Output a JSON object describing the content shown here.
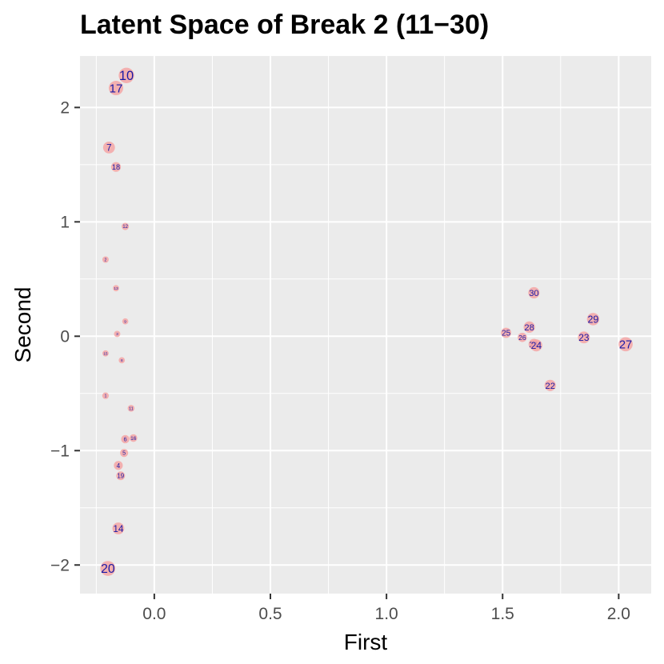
{
  "chart_data": {
    "type": "scatter",
    "title": "Latent Space of Break 2 (11−30)",
    "xlabel": "First",
    "ylabel": "Second",
    "xlim": [
      -0.32,
      2.14
    ],
    "ylim": [
      -2.25,
      2.45
    ],
    "x_ticks": [
      {
        "value": 0.0,
        "label": "0.0"
      },
      {
        "value": 0.5,
        "label": "0.5"
      },
      {
        "value": 1.0,
        "label": "1.0"
      },
      {
        "value": 1.5,
        "label": "1.5"
      },
      {
        "value": 2.0,
        "label": "2.0"
      }
    ],
    "y_ticks": [
      {
        "value": -2,
        "label": "−2"
      },
      {
        "value": -1,
        "label": "−1"
      },
      {
        "value": 0,
        "label": "0"
      },
      {
        "value": 1,
        "label": "1"
      },
      {
        "value": 2,
        "label": "2"
      }
    ],
    "grid": true,
    "marker_color": "#f4a6a6",
    "label_color": "#1a1aa6",
    "panel_color": "#ebebeb",
    "points": [
      {
        "label": "1",
        "x": -0.21,
        "y": -0.52,
        "size": 0.1
      },
      {
        "label": "2",
        "x": -0.21,
        "y": 0.67,
        "size": 0.08
      },
      {
        "label": "3",
        "x": -0.16,
        "y": 0.02,
        "size": 0.07
      },
      {
        "label": "4",
        "x": -0.155,
        "y": -1.13,
        "size": 0.32
      },
      {
        "label": "5",
        "x": -0.13,
        "y": -1.02,
        "size": 0.24
      },
      {
        "label": "6",
        "x": -0.125,
        "y": -0.9,
        "size": 0.26
      },
      {
        "label": "7",
        "x": -0.195,
        "y": 1.65,
        "size": 0.6
      },
      {
        "label": "8",
        "x": -0.14,
        "y": -0.21,
        "size": 0.05
      },
      {
        "label": "9",
        "x": -0.125,
        "y": 0.13,
        "size": 0.05
      },
      {
        "label": "10",
        "x": -0.12,
        "y": 2.28,
        "size": 0.95
      },
      {
        "label": "11",
        "x": -0.1,
        "y": -0.63,
        "size": 0.12
      },
      {
        "label": "12",
        "x": -0.125,
        "y": 0.96,
        "size": 0.16
      },
      {
        "label": "13",
        "x": -0.165,
        "y": 0.42,
        "size": 0.06
      },
      {
        "label": "14",
        "x": -0.155,
        "y": -1.68,
        "size": 0.6
      },
      {
        "label": "15",
        "x": -0.21,
        "y": -0.15,
        "size": 0.06
      },
      {
        "label": "16",
        "x": -0.09,
        "y": -0.89,
        "size": 0.2
      },
      {
        "label": "17",
        "x": -0.165,
        "y": 2.17,
        "size": 0.85
      },
      {
        "label": "18",
        "x": -0.165,
        "y": 1.48,
        "size": 0.4
      },
      {
        "label": "19",
        "x": -0.145,
        "y": -1.22,
        "size": 0.3
      },
      {
        "label": "20",
        "x": -0.2,
        "y": -2.03,
        "size": 0.9
      },
      {
        "label": "21",
        "x": 1.635,
        "y": -0.07,
        "size": 0.5
      },
      {
        "label": "22",
        "x": 1.705,
        "y": -0.43,
        "size": 0.55
      },
      {
        "label": "23",
        "x": 1.85,
        "y": -0.01,
        "size": 0.6
      },
      {
        "label": "24",
        "x": 1.645,
        "y": -0.08,
        "size": 0.62
      },
      {
        "label": "25",
        "x": 1.515,
        "y": 0.03,
        "size": 0.45
      },
      {
        "label": "26",
        "x": 1.585,
        "y": -0.01,
        "size": 0.35
      },
      {
        "label": "27",
        "x": 2.03,
        "y": -0.07,
        "size": 0.82
      },
      {
        "label": "28",
        "x": 1.615,
        "y": 0.08,
        "size": 0.55
      },
      {
        "label": "29",
        "x": 1.89,
        "y": 0.15,
        "size": 0.65
      },
      {
        "label": "30",
        "x": 1.635,
        "y": 0.38,
        "size": 0.55
      }
    ]
  }
}
